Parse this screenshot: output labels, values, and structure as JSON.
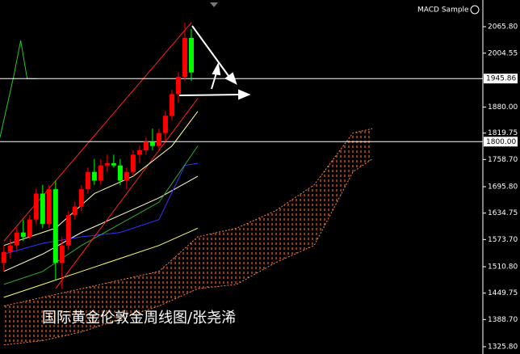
{
  "chart_data": {
    "type": "candlestick",
    "title": "国际黄金伦敦金周线图/张尧浠",
    "indicator_label": "MACD Sample",
    "up_color": "#ff0000",
    "down_color": "#00ff00",
    "open": [
      1520,
      1545,
      1560,
      1590,
      1580,
      1620,
      1680,
      1610,
      1690,
      1520,
      1560,
      1630,
      1650,
      1690,
      1730,
      1710,
      1745,
      1750,
      1745,
      1710,
      1730,
      1770,
      1780,
      1800,
      1790,
      1820,
      1860,
      1910,
      1950,
      2040
    ],
    "high": [
      1560,
      1575,
      1600,
      1620,
      1630,
      1690,
      1700,
      1700,
      1710,
      1580,
      1640,
      1660,
      1700,
      1740,
      1760,
      1760,
      1770,
      1770,
      1760,
      1740,
      1780,
      1790,
      1810,
      1830,
      1830,
      1870,
      1920,
      1960,
      2075,
      2060
    ],
    "low": [
      1500,
      1530,
      1550,
      1570,
      1575,
      1610,
      1600,
      1600,
      1480,
      1460,
      1550,
      1620,
      1640,
      1680,
      1700,
      1700,
      1730,
      1740,
      1700,
      1690,
      1720,
      1750,
      1770,
      1780,
      1780,
      1800,
      1850,
      1890,
      1940,
      1940
    ],
    "close": [
      1545,
      1560,
      1590,
      1580,
      1620,
      1680,
      1610,
      1690,
      1520,
      1560,
      1630,
      1650,
      1690,
      1730,
      1710,
      1745,
      1750,
      1745,
      1710,
      1730,
      1770,
      1780,
      1800,
      1790,
      1820,
      1860,
      1910,
      1950,
      2040,
      1960
    ],
    "xlim": [
      -0.6,
      74.1
    ],
    "ylim": [
      1309,
      2127.5
    ],
    "yticks": [
      {
        "value": 2065.8,
        "label": "2065.80"
      },
      {
        "value": 2004.55,
        "label": "2004.55"
      },
      {
        "value": 1880,
        "label": "1880.00"
      },
      {
        "value": 1819.75,
        "label": "1819.75"
      },
      {
        "value": 1758.7,
        "label": "1758.70"
      },
      {
        "value": 1695.8,
        "label": "1695.80"
      },
      {
        "value": 1634.75,
        "label": "1634.75"
      },
      {
        "value": 1573.7,
        "label": "1573.70"
      },
      {
        "value": 1510.8,
        "label": "1510.80"
      },
      {
        "value": 1449.75,
        "label": "1449.75"
      },
      {
        "value": 1388.7,
        "label": "1388.70"
      },
      {
        "value": 1325.8,
        "label": "1325.80"
      }
    ],
    "hlines": [
      {
        "value": 1945.86,
        "label": "1945.86"
      },
      {
        "value": 1800,
        "label": "1800.00"
      }
    ],
    "series": [
      {
        "color": "#ffff66",
        "x": [
          0,
          6,
          12,
          18,
          24,
          30
        ],
        "values": [
          1440,
          1470,
          1500,
          1530,
          1560,
          1600
        ]
      },
      {
        "color": "#ffffcc",
        "x": [
          0,
          6,
          12,
          18,
          24,
          30
        ],
        "values": [
          1500,
          1540,
          1590,
          1630,
          1670,
          1720
        ]
      },
      {
        "color": "#3333ff",
        "x": [
          0,
          6,
          12,
          18,
          24,
          28,
          30
        ],
        "values": [
          1540,
          1565,
          1580,
          1590,
          1620,
          1745,
          1750
        ]
      },
      {
        "color": "#33aa33",
        "x": [
          0,
          6,
          12,
          18,
          24,
          30
        ],
        "values": [
          1470,
          1500,
          1560,
          1610,
          1660,
          1790
        ]
      },
      {
        "color": "#ff2222",
        "x": [
          0,
          29
        ],
        "values": [
          1570,
          2075
        ]
      },
      {
        "color": "#ff2222",
        "x": [
          8,
          30
        ],
        "values": [
          1460,
          1900
        ]
      },
      {
        "color": "#ffff99",
        "x": [
          0,
          8,
          14,
          20,
          26,
          30
        ],
        "values": [
          1560,
          1600,
          1680,
          1720,
          1790,
          1870
        ]
      },
      {
        "color": "#22cc22",
        "x": [
          -0.6,
          1.5,
          2.6,
          3.6,
          5
        ],
        "values": [
          1810,
          1950,
          2034,
          1946,
          1945
        ]
      }
    ],
    "cloud": {
      "color": "#ff8040",
      "x": [
        0,
        6,
        12,
        18,
        24,
        30,
        36,
        42,
        48,
        54,
        57
      ],
      "upper": [
        1420,
        1440,
        1460,
        1480,
        1500,
        1580,
        1600,
        1640,
        1700,
        1820,
        1830
      ],
      "lower": [
        1330,
        1340,
        1360,
        1390,
        1420,
        1460,
        1470,
        1520,
        1560,
        1730,
        1760
      ]
    }
  }
}
